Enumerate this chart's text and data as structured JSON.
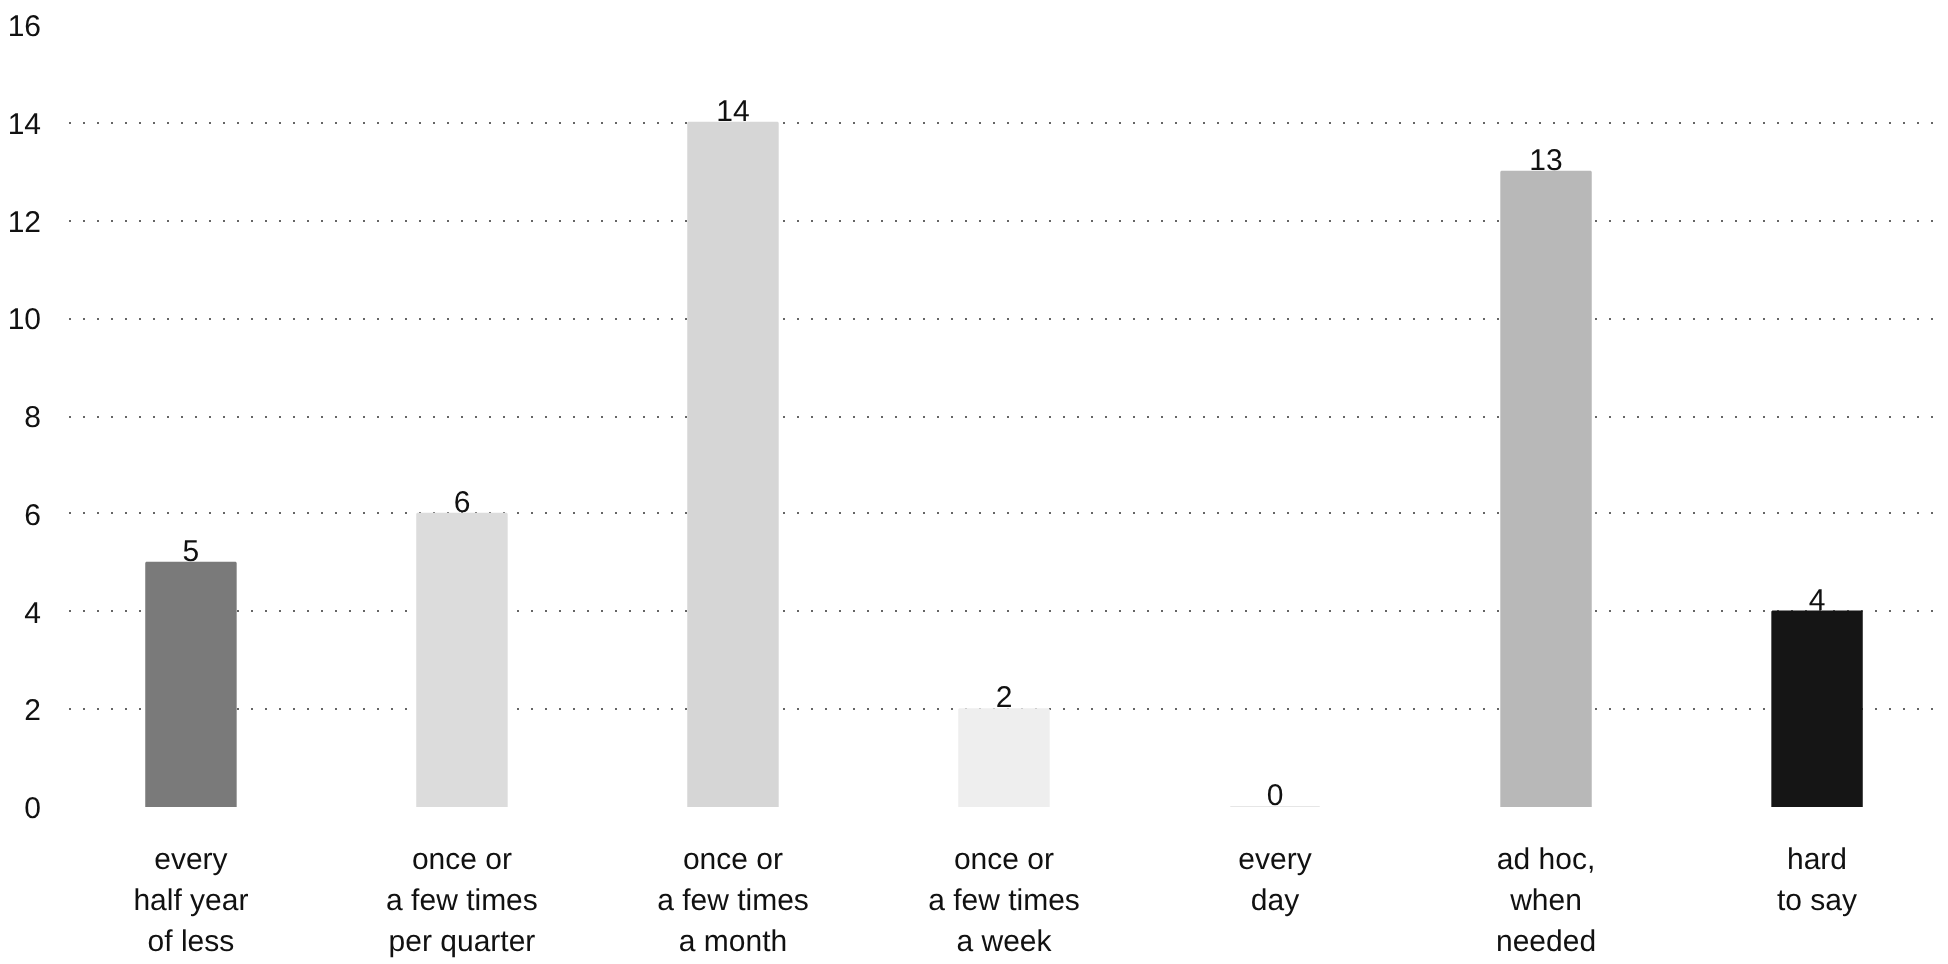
{
  "chart_data": {
    "type": "bar",
    "categories": [
      "every\nhalf year\nof less",
      "once or\na few times\nper quarter",
      "once or\na few times\na month",
      "once or\na few times\na week",
      "every\nday",
      "ad hoc,\nwhen\nneeded",
      "hard\nto say"
    ],
    "values": [
      5,
      6,
      14,
      2,
      0,
      13,
      4
    ],
    "colors": [
      "#7a7a7a",
      "#dcdcdc",
      "#d6d6d6",
      "#eeeeee",
      "#e6e6e6",
      "#b8b8b8",
      "#151515"
    ],
    "ylim": [
      0,
      16
    ],
    "yticks": [
      0,
      2,
      4,
      6,
      8,
      10,
      12,
      14,
      16
    ],
    "grid": "y",
    "data_labels": true
  }
}
